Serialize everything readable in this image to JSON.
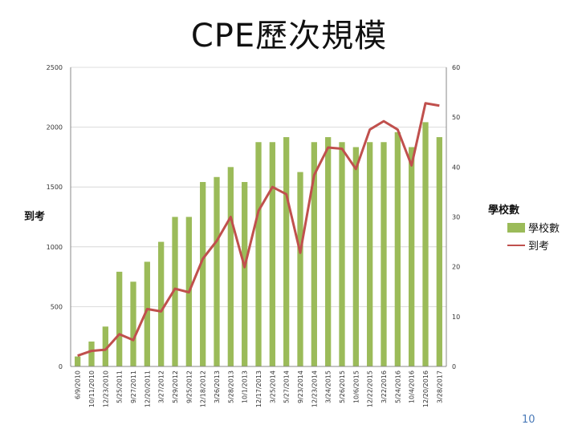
{
  "slide": {
    "title": "CPE歷次規模",
    "page_number": "10"
  },
  "colors": {
    "bar": "#9bbb59",
    "line": "#c0504d",
    "grid": "#d0d0d0",
    "axis": "#888888"
  },
  "chart_data": {
    "type": "bar",
    "title": "",
    "categories": [
      "6/9/2010",
      "10/11/2010",
      "12/23/2010",
      "5/25/2011",
      "9/27/2011",
      "12/20/2011",
      "3/27/2012",
      "5/29/2012",
      "9/25/2012",
      "12/18/2012",
      "3/26/2013",
      "5/28/2013",
      "10/1/2013",
      "12/17/2013",
      "3/25/2014",
      "5/27/2014",
      "9/23/2014",
      "12/23/2014",
      "3/24/2015",
      "5/26/2015",
      "10/6/2015",
      "12/22/2015",
      "3/22/2016",
      "5/24/2016",
      "10/4/2016",
      "12/20/2016",
      "3/28/2017"
    ],
    "series": [
      {
        "name": "學校數",
        "type": "bar",
        "axis": "right",
        "values": [
          2,
          5,
          8,
          19,
          17,
          21,
          25,
          30,
          30,
          37,
          38,
          40,
          37,
          45,
          45,
          46,
          39,
          45,
          46,
          45,
          44,
          45,
          45,
          47,
          44,
          49,
          46
        ]
      },
      {
        "name": "到考",
        "type": "line",
        "axis": "left",
        "values": [
          90,
          130,
          140,
          270,
          220,
          480,
          460,
          650,
          620,
          900,
          1050,
          1250,
          830,
          1300,
          1500,
          1440,
          950,
          1600,
          1830,
          1820,
          1650,
          1980,
          2050,
          1980,
          1680,
          2200,
          2180
        ]
      }
    ],
    "y_left": {
      "label": "到考",
      "ylim": [
        0,
        2500
      ],
      "ticks": [
        "0",
        "500",
        "1000",
        "1500",
        "2000",
        "2500"
      ]
    },
    "y_right": {
      "label": "學校數",
      "ylim": [
        0,
        60
      ],
      "ticks": [
        "0",
        "10",
        "20",
        "30",
        "40",
        "50",
        "60"
      ]
    },
    "grid": true,
    "legend": {
      "placement": "right",
      "entries": [
        {
          "label": "學校數",
          "kind": "bar"
        },
        {
          "label": "到考",
          "kind": "line"
        }
      ]
    }
  }
}
